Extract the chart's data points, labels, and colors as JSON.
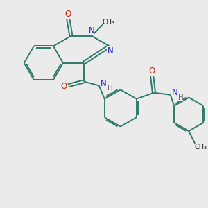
{
  "background_color": "#ebebeb",
  "bond_color": "#2d7a6b",
  "N_color": "#2222cc",
  "O_color": "#cc2200",
  "C_color": "#111111",
  "H_color": "#666666",
  "line_width": 1.4,
  "figsize": [
    3.0,
    3.0
  ],
  "dpi": 100,
  "xlim": [
    0,
    10
  ],
  "ylim": [
    0,
    10
  ]
}
